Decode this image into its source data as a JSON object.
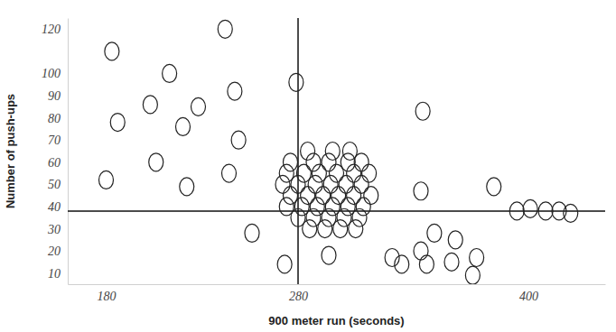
{
  "chart_data": {
    "type": "scatter",
    "x_label": "900 meter run (seconds)",
    "y_label": "Number of push-ups",
    "x": [
      183,
      213,
      242,
      279,
      203,
      228,
      247,
      186,
      220,
      249,
      180,
      206,
      222,
      244,
      256,
      273,
      296,
      285,
      298,
      307,
      276,
      288,
      296,
      306,
      313,
      274,
      283,
      291,
      300,
      309,
      317,
      272,
      280,
      289,
      297,
      305,
      313,
      276,
      285,
      293,
      301,
      309,
      318,
      274,
      282,
      290,
      298,
      306,
      314,
      280,
      288,
      296,
      304,
      312,
      286,
      294,
      302,
      310,
      344,
      382,
      345,
      394,
      401,
      409,
      416,
      422,
      329,
      344,
      351,
      362,
      334,
      347,
      360,
      373,
      371
    ],
    "values": [
      110,
      100,
      120,
      96,
      86,
      85,
      92,
      78,
      76,
      70,
      52,
      60,
      49,
      55,
      28,
      14,
      18,
      65,
      65,
      65,
      60,
      60,
      60,
      60,
      60,
      55,
      55,
      55,
      55,
      55,
      55,
      50,
      50,
      50,
      50,
      50,
      50,
      45,
      45,
      45,
      45,
      45,
      45,
      40,
      40,
      40,
      40,
      40,
      40,
      35,
      35,
      35,
      35,
      35,
      30,
      30,
      30,
      30,
      47,
      49,
      83,
      38,
      39,
      38,
      38,
      37,
      17,
      20,
      28,
      25,
      14,
      14,
      15,
      17,
      9
    ],
    "xlim": [
      160,
      440
    ],
    "ylim": [
      5,
      125
    ],
    "xticks": [
      180,
      280,
      400
    ],
    "yticks": [
      10,
      20,
      30,
      40,
      50,
      60,
      70,
      80,
      90,
      100,
      120
    ],
    "reference_x": 280,
    "reference_y": 38,
    "marker": "circle",
    "color": "#222222",
    "grid": false
  }
}
